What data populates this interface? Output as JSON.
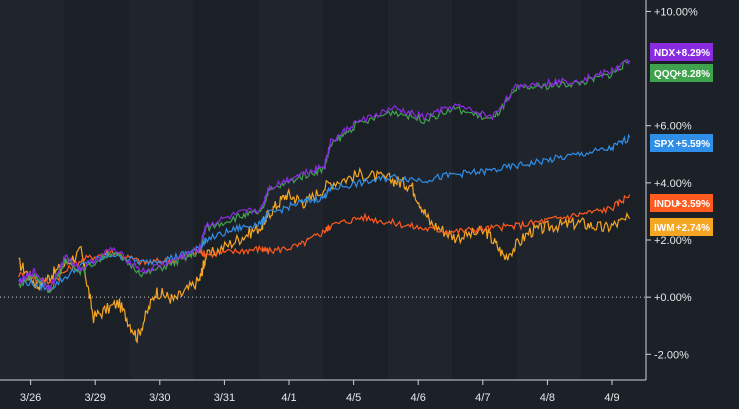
{
  "chart_data": {
    "type": "line",
    "y_axis": {
      "ticks": [
        "+10.00%",
        "+6.00%",
        "+4.00%",
        "+2.00%",
        "+0.00%",
        "-2.00%"
      ],
      "tick_values": [
        10,
        6,
        4,
        2,
        0,
        -2
      ],
      "ylim": [
        -2.9,
        10.4
      ],
      "position": "right"
    },
    "x_axis": {
      "categories": [
        "3/26",
        "3/29",
        "3/30",
        "3/31",
        "4/1",
        "4/5",
        "4/6",
        "4/7",
        "4/8",
        "4/9"
      ]
    },
    "reference_line": {
      "value": 0,
      "style": "dotted"
    },
    "grid": false,
    "alternating_day_bands": true,
    "series": [
      {
        "name": "NDX",
        "label": "+8.29%",
        "color": "#8a2be2",
        "final": 8.29,
        "points": [
          [
            0,
            0.5
          ],
          [
            0.25,
            0.9
          ],
          [
            0.5,
            0.3
          ],
          [
            0.75,
            1.4
          ],
          [
            1,
            1.0
          ],
          [
            1.5,
            1.7
          ],
          [
            2,
            0.9
          ],
          [
            2.5,
            1.3
          ],
          [
            2.9,
            1.7
          ],
          [
            3,
            2.5
          ],
          [
            3.5,
            2.9
          ],
          [
            3.9,
            3.1
          ],
          [
            4,
            3.8
          ],
          [
            4.5,
            4.3
          ],
          [
            4.9,
            4.6
          ],
          [
            5,
            5.4
          ],
          [
            5.4,
            6.1
          ],
          [
            6,
            6.6
          ],
          [
            6.5,
            6.3
          ],
          [
            7,
            6.7
          ],
          [
            7.6,
            6.3
          ],
          [
            8,
            7.4
          ],
          [
            8.5,
            7.5
          ],
          [
            9,
            7.6
          ],
          [
            9.5,
            7.9
          ],
          [
            9.8,
            8.29
          ]
        ]
      },
      {
        "name": "QQQ",
        "label": "+8.28%",
        "color": "#3fa34d",
        "final": 8.28,
        "points": [
          [
            0,
            0.4
          ],
          [
            0.25,
            0.8
          ],
          [
            0.5,
            0.2
          ],
          [
            0.75,
            1.3
          ],
          [
            1,
            0.9
          ],
          [
            1.5,
            1.6
          ],
          [
            2,
            0.8
          ],
          [
            2.5,
            1.2
          ],
          [
            2.9,
            1.6
          ],
          [
            3,
            2.4
          ],
          [
            3.5,
            2.8
          ],
          [
            3.9,
            3.0
          ],
          [
            4,
            3.7
          ],
          [
            4.5,
            4.2
          ],
          [
            4.9,
            4.5
          ],
          [
            5,
            5.3
          ],
          [
            5.4,
            6.0
          ],
          [
            6,
            6.5
          ],
          [
            6.5,
            6.2
          ],
          [
            7,
            6.6
          ],
          [
            7.6,
            6.2
          ],
          [
            8,
            7.3
          ],
          [
            8.5,
            7.4
          ],
          [
            9,
            7.5
          ],
          [
            9.5,
            7.8
          ],
          [
            9.8,
            8.28
          ]
        ]
      },
      {
        "name": "SPX",
        "label": "+5.59%",
        "color": "#2f8fe8",
        "final": 5.59,
        "points": [
          [
            0,
            0.6
          ],
          [
            0.5,
            0.3
          ],
          [
            1,
            1.1
          ],
          [
            1.5,
            1.5
          ],
          [
            2,
            1.2
          ],
          [
            2.5,
            1.4
          ],
          [
            2.9,
            1.7
          ],
          [
            3,
            2.0
          ],
          [
            3.5,
            2.4
          ],
          [
            3.9,
            2.6
          ],
          [
            4,
            2.9
          ],
          [
            4.5,
            3.3
          ],
          [
            4.9,
            3.5
          ],
          [
            5,
            3.8
          ],
          [
            5.5,
            4.0
          ],
          [
            6,
            4.2
          ],
          [
            6.5,
            4.1
          ],
          [
            7,
            4.3
          ],
          [
            7.5,
            4.4
          ],
          [
            8,
            4.6
          ],
          [
            8.5,
            4.8
          ],
          [
            9,
            5.0
          ],
          [
            9.5,
            5.2
          ],
          [
            9.8,
            5.59
          ]
        ]
      },
      {
        "name": "INDU",
        "label": "+3.59%",
        "color": "#ff5a1f",
        "final": 3.59,
        "points": [
          [
            0,
            0.8
          ],
          [
            0.5,
            0.5
          ],
          [
            1,
            1.3
          ],
          [
            1.5,
            1.6
          ],
          [
            2,
            1.2
          ],
          [
            2.5,
            1.3
          ],
          [
            2.9,
            1.6
          ],
          [
            3,
            1.5
          ],
          [
            3.5,
            1.6
          ],
          [
            3.9,
            1.7
          ],
          [
            4,
            1.6
          ],
          [
            4.5,
            1.8
          ],
          [
            4.9,
            2.3
          ],
          [
            5,
            2.5
          ],
          [
            5.5,
            2.8
          ],
          [
            6,
            2.6
          ],
          [
            6.5,
            2.4
          ],
          [
            7,
            2.3
          ],
          [
            7.5,
            2.4
          ],
          [
            8,
            2.5
          ],
          [
            8.5,
            2.7
          ],
          [
            9,
            2.9
          ],
          [
            9.5,
            3.1
          ],
          [
            9.8,
            3.59
          ]
        ]
      },
      {
        "name": "IWM",
        "label": "+2.74%",
        "color": "#f5a623",
        "final": 2.74,
        "points": [
          [
            0,
            1.2
          ],
          [
            0.3,
            0.4
          ],
          [
            0.6,
            0.9
          ],
          [
            1,
            1.6
          ],
          [
            1.2,
            -0.7
          ],
          [
            1.6,
            -0.2
          ],
          [
            1.9,
            -1.4
          ],
          [
            2.2,
            0.2
          ],
          [
            2.5,
            -0.1
          ],
          [
            2.9,
            0.6
          ],
          [
            3,
            1.4
          ],
          [
            3.5,
            2.0
          ],
          [
            3.9,
            2.5
          ],
          [
            4,
            2.9
          ],
          [
            4.3,
            3.6
          ],
          [
            4.6,
            3.3
          ],
          [
            5,
            4.0
          ],
          [
            5.5,
            4.3
          ],
          [
            6,
            4.1
          ],
          [
            6.3,
            3.9
          ],
          [
            6.6,
            2.6
          ],
          [
            7,
            2.1
          ],
          [
            7.5,
            2.3
          ],
          [
            7.8,
            1.4
          ],
          [
            8.2,
            2.3
          ],
          [
            8.6,
            2.5
          ],
          [
            9,
            2.6
          ],
          [
            9.4,
            2.4
          ],
          [
            9.8,
            2.74
          ]
        ]
      }
    ]
  }
}
